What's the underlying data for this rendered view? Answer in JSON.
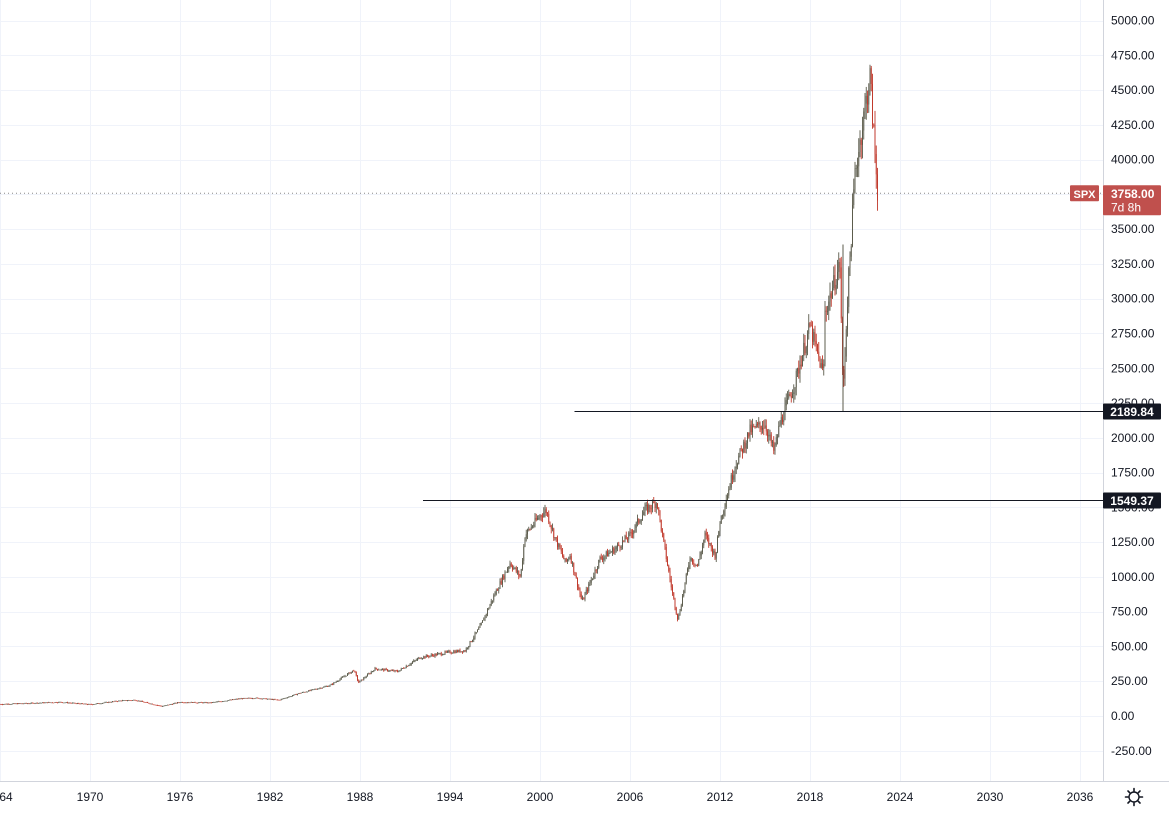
{
  "chart_data": {
    "type": "candlestick",
    "symbol": "SPX",
    "last_price": "3758.00",
    "countdown": "7d 8h",
    "y_ticks": [
      "5000.00",
      "4750.00",
      "4500.00",
      "4250.00",
      "4000.00",
      "3750.00",
      "3500.00",
      "3250.00",
      "3000.00",
      "2750.00",
      "2500.00",
      "2250.00",
      "2000.00",
      "1750.00",
      "1500.00",
      "1250.00",
      "1000.00",
      "750.00",
      "500.00",
      "250.00",
      "0.00",
      "-250.00"
    ],
    "x_ticks": [
      "64",
      "1970",
      "1976",
      "1982",
      "1988",
      "1994",
      "2000",
      "2006",
      "2012",
      "2018",
      "2024",
      "2030",
      "2036"
    ],
    "ylim": [
      -250,
      5000
    ],
    "xlim": [
      1963.7,
      2037.3
    ],
    "horizontal_lines": [
      {
        "value": 2189.84,
        "label": "2189.84",
        "start_year": 2002.3
      },
      {
        "value": 1549.37,
        "label": "1549.37",
        "start_year": 1992.2
      }
    ],
    "series": {
      "x": [
        1964,
        1966,
        1968,
        1970,
        1972,
        1973,
        1974.8,
        1976,
        1978,
        1980,
        1981,
        1982.6,
        1984,
        1986,
        1987.6,
        1987.9,
        1989,
        1990.5,
        1992,
        1994,
        1995,
        1996,
        1997,
        1998,
        1998.7,
        1999,
        2000,
        2000.4,
        2001,
        2001.7,
        2002,
        2002.8,
        2003.5,
        2004,
        2005,
        2006,
        2007,
        2007.8,
        2008,
        2008.8,
        2009.2,
        2010,
        2010.5,
        2011,
        2011.7,
        2012,
        2013,
        2014,
        2015,
        2015.6,
        2016,
        2017,
        2018,
        2018.9,
        2019,
        2020,
        2020.2,
        2020.5,
        2021,
        2022,
        2022.5
      ],
      "y": [
        85,
        92,
        100,
        83,
        110,
        115,
        70,
        100,
        95,
        125,
        130,
        115,
        165,
        220,
        330,
        240,
        340,
        320,
        420,
        460,
        470,
        640,
        880,
        1100,
        1000,
        1300,
        1440,
        1480,
        1280,
        1100,
        1160,
        820,
        1000,
        1130,
        1200,
        1300,
        1480,
        1540,
        1400,
        900,
        690,
        1140,
        1080,
        1300,
        1150,
        1400,
        1800,
        2050,
        2100,
        1900,
        2100,
        2400,
        2800,
        2450,
        2900,
        3250,
        2300,
        3000,
        3900,
        4600,
        3760
      ]
    }
  },
  "colors": {
    "up": "#5b5b4b",
    "down": "#c0392b",
    "badge": "#c0504d",
    "marker": "#131722",
    "grid": "#f0f3fa",
    "axis_text": "#131722"
  },
  "settings_icon": "gear-icon"
}
